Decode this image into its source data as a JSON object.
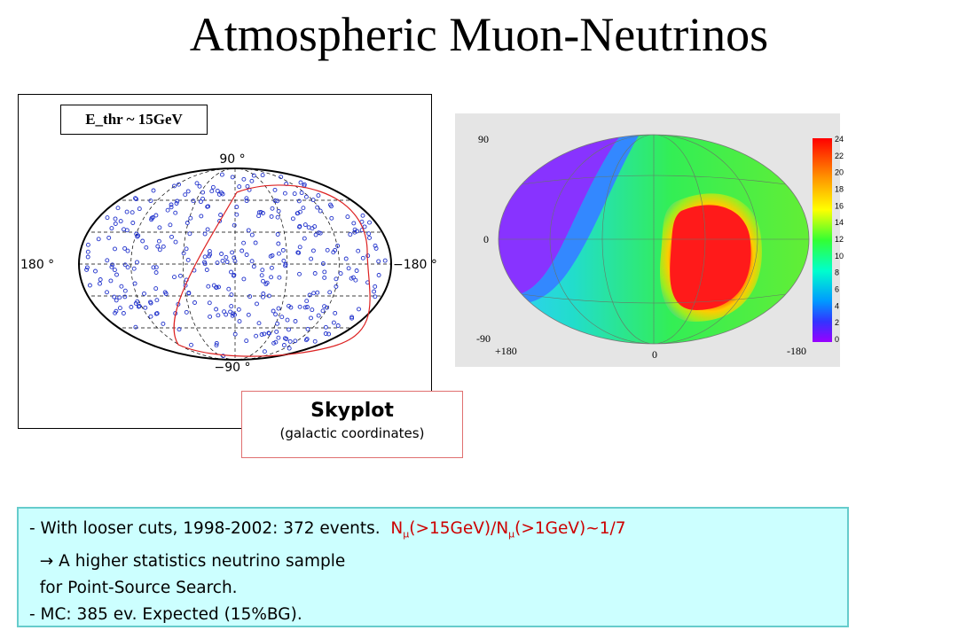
{
  "title": "Atmospheric Muon-Neutrinos",
  "skyplot": {
    "label_90": "90 °",
    "label_m90": "−90 °",
    "label_180": "180 °",
    "label_m180": "−180 °",
    "ethr": "E_thr ~ 15GeV",
    "caption_title": "Skyplot",
    "caption_sub": "(galactic coordinates)"
  },
  "heatmap": {
    "y_top": "90",
    "y_mid": "0",
    "y_bot": "-90",
    "x_left": "+180",
    "x_mid": "0",
    "x_right": "-180",
    "scale": [
      "24",
      "22",
      "20",
      "18",
      "16",
      "14",
      "12",
      "10",
      "8",
      "6",
      "4",
      "2",
      "0"
    ]
  },
  "notes": {
    "line1_a": "- With looser cuts,  1998-2002:  372 events.",
    "n_sym": "N",
    "mu": "μ",
    "line1_mid": "(>15GeV)/N",
    "line1_end": "(>1GeV)~1/7",
    "arrow": "→",
    "line2": "A higher statistics neutrino sample",
    "line3": "for Point-Source Search.",
    "line4": "- MC: 385 ev. Expected (15%BG)."
  }
}
